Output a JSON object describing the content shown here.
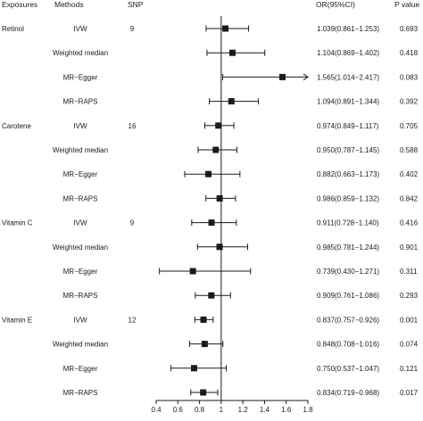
{
  "chart_data": {
    "type": "forest",
    "headers": {
      "exposures": "Exposures",
      "methods": "Methods",
      "snp": "SNP",
      "or_ci": "OR(95%CI)",
      "p_value": "P value"
    },
    "reference_line": 1.0,
    "x_ticks": [
      "0.4",
      "0.6",
      "0.8",
      "1",
      "1.2",
      "1.4",
      "1.6",
      "1.8"
    ],
    "xlim": [
      0.4,
      1.8
    ],
    "groups": [
      {
        "exposure": "Retinol",
        "snp": "9",
        "rows": [
          {
            "method": "IVW",
            "or": 1.039,
            "lo": 0.861,
            "hi": 1.253,
            "or_text": "1.039(0.861−1.253)",
            "p": "0.693"
          },
          {
            "method": "Weighted median",
            "or": 1.104,
            "lo": 0.869,
            "hi": 1.402,
            "or_text": "1.104(0.869−1.402)",
            "p": "0.418"
          },
          {
            "method": "MR−Egger",
            "or": 1.565,
            "lo": 1.014,
            "hi": 2.417,
            "or_text": "1.565(1.014−2.417)",
            "p": "0.083"
          },
          {
            "method": "MR−RAPS",
            "or": 1.094,
            "lo": 0.891,
            "hi": 1.344,
            "or_text": "1.094(0.891−1.344)",
            "p": "0.392"
          }
        ]
      },
      {
        "exposure": "Carotene",
        "snp": "16",
        "rows": [
          {
            "method": "IVW",
            "or": 0.974,
            "lo": 0.849,
            "hi": 1.117,
            "or_text": "0.974(0.849−1.117)",
            "p": "0.705"
          },
          {
            "method": "Weighted median",
            "or": 0.95,
            "lo": 0.787,
            "hi": 1.145,
            "or_text": "0.950(0.787−1.145)",
            "p": "0.588"
          },
          {
            "method": "MR−Egger",
            "or": 0.882,
            "lo": 0.663,
            "hi": 1.173,
            "or_text": "0.882(0.663−1.173)",
            "p": "0.402"
          },
          {
            "method": "MR−RAPS",
            "or": 0.986,
            "lo": 0.859,
            "hi": 1.132,
            "or_text": "0.986(0.859−1.132)",
            "p": "0.842"
          }
        ]
      },
      {
        "exposure": "Vitamin C",
        "snp": "9",
        "rows": [
          {
            "method": "IVW",
            "or": 0.911,
            "lo": 0.728,
            "hi": 1.14,
            "or_text": "0.911(0.728−1.140)",
            "p": "0.416"
          },
          {
            "method": "Weighted median",
            "or": 0.985,
            "lo": 0.781,
            "hi": 1.244,
            "or_text": "0.985(0.781−1.244)",
            "p": "0.901"
          },
          {
            "method": "MR−Egger",
            "or": 0.739,
            "lo": 0.43,
            "hi": 1.271,
            "or_text": "0.739(0.430−1.271)",
            "p": "0.311"
          },
          {
            "method": "MR−RAPS",
            "or": 0.909,
            "lo": 0.761,
            "hi": 1.086,
            "or_text": "0.909(0.761−1.086)",
            "p": "0.293"
          }
        ]
      },
      {
        "exposure": "Vitamin E",
        "snp": "12",
        "rows": [
          {
            "method": "IVW",
            "or": 0.837,
            "lo": 0.757,
            "hi": 0.926,
            "or_text": "0.837(0.757−0.926)",
            "p": "0.001"
          },
          {
            "method": "Weighted median",
            "or": 0.848,
            "lo": 0.708,
            "hi": 1.016,
            "or_text": "0.848(0.708−1.016)",
            "p": "0.074"
          },
          {
            "method": "MR−Egger",
            "or": 0.75,
            "lo": 0.537,
            "hi": 1.047,
            "or_text": "0.750(0.537−1.047)",
            "p": "0.121"
          },
          {
            "method": "MR−RAPS",
            "or": 0.834,
            "lo": 0.719,
            "hi": 0.968,
            "or_text": "0.834(0.719−0.968)",
            "p": "0.017"
          }
        ]
      }
    ],
    "colors": {
      "marker": "#1a1a1a",
      "line": "#1a1a1a"
    }
  }
}
